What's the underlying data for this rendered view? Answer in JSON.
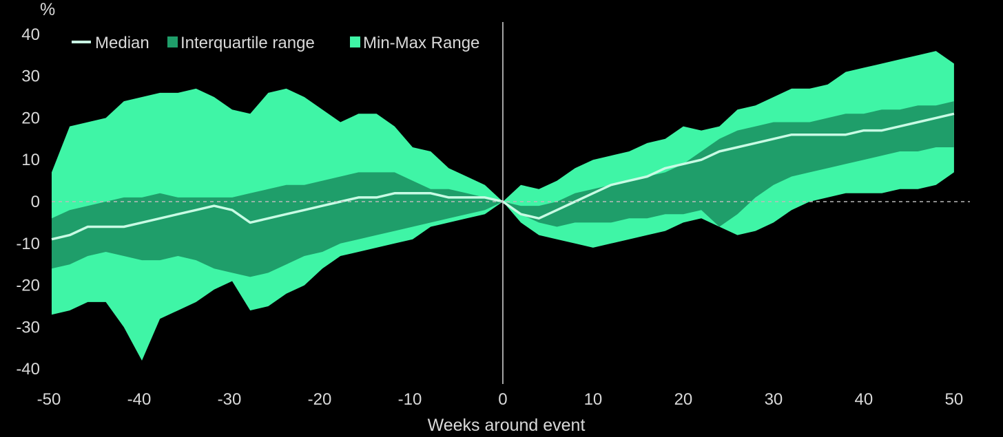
{
  "chart_data": {
    "type": "area",
    "title": "",
    "xlabel": "Weeks around event",
    "ylabel": "%",
    "xlim": [
      -50,
      51
    ],
    "ylim": [
      -40,
      42
    ],
    "xticks": [
      -50,
      -40,
      -30,
      -20,
      -10,
      0,
      10,
      20,
      30,
      40,
      50
    ],
    "yticks": [
      -40,
      -30,
      -20,
      -10,
      0,
      10,
      20,
      30,
      40
    ],
    "zero_line": "dashed",
    "event_line_x": 0,
    "legend_placement": "top-left",
    "colors": {
      "background": "#000000",
      "minmax": "#3ff5a6",
      "iqr": "#1f9e6a",
      "median": "#c8fbe4",
      "text": "#d9d9d9"
    },
    "legend": [
      {
        "name": "Median",
        "marker": "line"
      },
      {
        "name": "Interquartile range",
        "marker": "square-dark"
      },
      {
        "name": "Min-Max Range",
        "marker": "square-light"
      }
    ],
    "x": [
      -50,
      -48,
      -46,
      -44,
      -42,
      -40,
      -38,
      -36,
      -34,
      -32,
      -30,
      -28,
      -26,
      -24,
      -22,
      -20,
      -18,
      -16,
      -14,
      -12,
      -10,
      -8,
      -6,
      -4,
      -2,
      0,
      2,
      4,
      6,
      8,
      10,
      12,
      14,
      16,
      18,
      20,
      22,
      24,
      26,
      28,
      30,
      32,
      34,
      36,
      38,
      40,
      42,
      44,
      46,
      48,
      50
    ],
    "series": [
      {
        "name": "Min-Max Range",
        "role": "max",
        "values": [
          7,
          18,
          19,
          20,
          24,
          25,
          26,
          26,
          27,
          25,
          22,
          21,
          26,
          27,
          25,
          22,
          19,
          21,
          21,
          18,
          13,
          12,
          8,
          6,
          4,
          0,
          4,
          3,
          5,
          8,
          10,
          11,
          12,
          14,
          15,
          18,
          17,
          18,
          22,
          23,
          25,
          27,
          27,
          28,
          31,
          32,
          33,
          34,
          35,
          36,
          33
        ]
      },
      {
        "name": "Min-Max Range",
        "role": "min",
        "values": [
          -27,
          -26,
          -24,
          -24,
          -30,
          -38,
          -28,
          -26,
          -24,
          -21,
          -19,
          -26,
          -25,
          -22,
          -20,
          -16,
          -13,
          -12,
          -11,
          -10,
          -9,
          -6,
          -5,
          -4,
          -3,
          0,
          -5,
          -8,
          -9,
          -10,
          -11,
          -10,
          -9,
          -8,
          -7,
          -5,
          -4,
          -6,
          -8,
          -7,
          -5,
          -2,
          0,
          1,
          2,
          2,
          2,
          3,
          3,
          4,
          7
        ]
      },
      {
        "name": "Interquartile range",
        "role": "q3",
        "values": [
          -4,
          -2,
          -1,
          0,
          1,
          1,
          2,
          1,
          1,
          1,
          1,
          2,
          3,
          4,
          4,
          5,
          6,
          7,
          7,
          7,
          5,
          3,
          3,
          2,
          1,
          0,
          -1,
          -1,
          0,
          2,
          3,
          4,
          5,
          6,
          7,
          9,
          12,
          15,
          17,
          18,
          19,
          19,
          19,
          20,
          21,
          21,
          22,
          22,
          23,
          23,
          24
        ]
      },
      {
        "name": "Interquartile range",
        "role": "q1",
        "values": [
          -16,
          -15,
          -13,
          -12,
          -13,
          -14,
          -14,
          -13,
          -14,
          -16,
          -17,
          -18,
          -17,
          -15,
          -13,
          -12,
          -10,
          -9,
          -8,
          -7,
          -6,
          -5,
          -4,
          -3,
          -2,
          0,
          -3,
          -5,
          -6,
          -5,
          -5,
          -5,
          -4,
          -4,
          -3,
          -3,
          -2,
          -6,
          -3,
          1,
          4,
          6,
          7,
          8,
          9,
          10,
          11,
          12,
          12,
          13,
          13
        ]
      },
      {
        "name": "Median",
        "role": "median",
        "values": [
          -9,
          -8,
          -6,
          -6,
          -6,
          -5,
          -4,
          -3,
          -2,
          -1,
          -2,
          -5,
          -4,
          -3,
          -2,
          -1,
          0,
          1,
          1,
          2,
          2,
          2,
          1,
          1,
          1,
          0,
          -3,
          -4,
          -2,
          0,
          2,
          4,
          5,
          6,
          8,
          9,
          10,
          12,
          13,
          14,
          15,
          16,
          16,
          16,
          16,
          17,
          17,
          18,
          19,
          20,
          21
        ]
      }
    ]
  }
}
